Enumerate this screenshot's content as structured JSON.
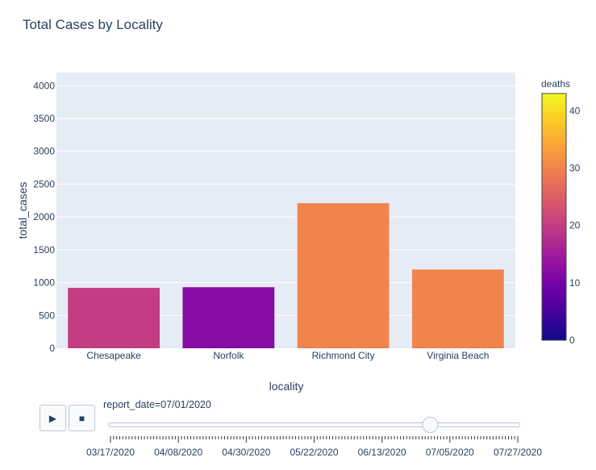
{
  "chart_data": {
    "type": "bar",
    "title": "Total Cases by Locality",
    "xlabel": "locality",
    "ylabel": "total_cases",
    "ylim": [
      0,
      4200
    ],
    "yticks": [
      0,
      500,
      1000,
      1500,
      2000,
      2500,
      3000,
      3500,
      4000
    ],
    "categories": [
      "Chesapeake",
      "Norfolk",
      "Richmond City",
      "Virginia Beach"
    ],
    "values": [
      920,
      930,
      2210,
      1200
    ],
    "deaths": [
      20,
      12,
      30,
      30
    ],
    "colorbar": {
      "title": "deaths",
      "range": [
        0,
        43
      ],
      "ticks": [
        0,
        10,
        20,
        30,
        40
      ],
      "colorscale": [
        "#0d0887",
        "#46039f",
        "#7201a8",
        "#9c179e",
        "#bd3786",
        "#d8576b",
        "#ed7953",
        "#fb9f3a",
        "#fdca26",
        "#f0f921"
      ]
    },
    "grid": true
  },
  "animation": {
    "play_icon": "▶",
    "stop_icon": "■",
    "current_label": "report_date=07/01/2020",
    "slider_fraction": 0.785,
    "dates": [
      "03/17/2020",
      "04/08/2020",
      "04/30/2020",
      "05/22/2020",
      "06/13/2020",
      "07/05/2020",
      "07/27/2020"
    ]
  },
  "colors": {
    "plot_bg": "#e5ecf6",
    "text": "#2a3f5f",
    "grid": "#ffffff"
  }
}
